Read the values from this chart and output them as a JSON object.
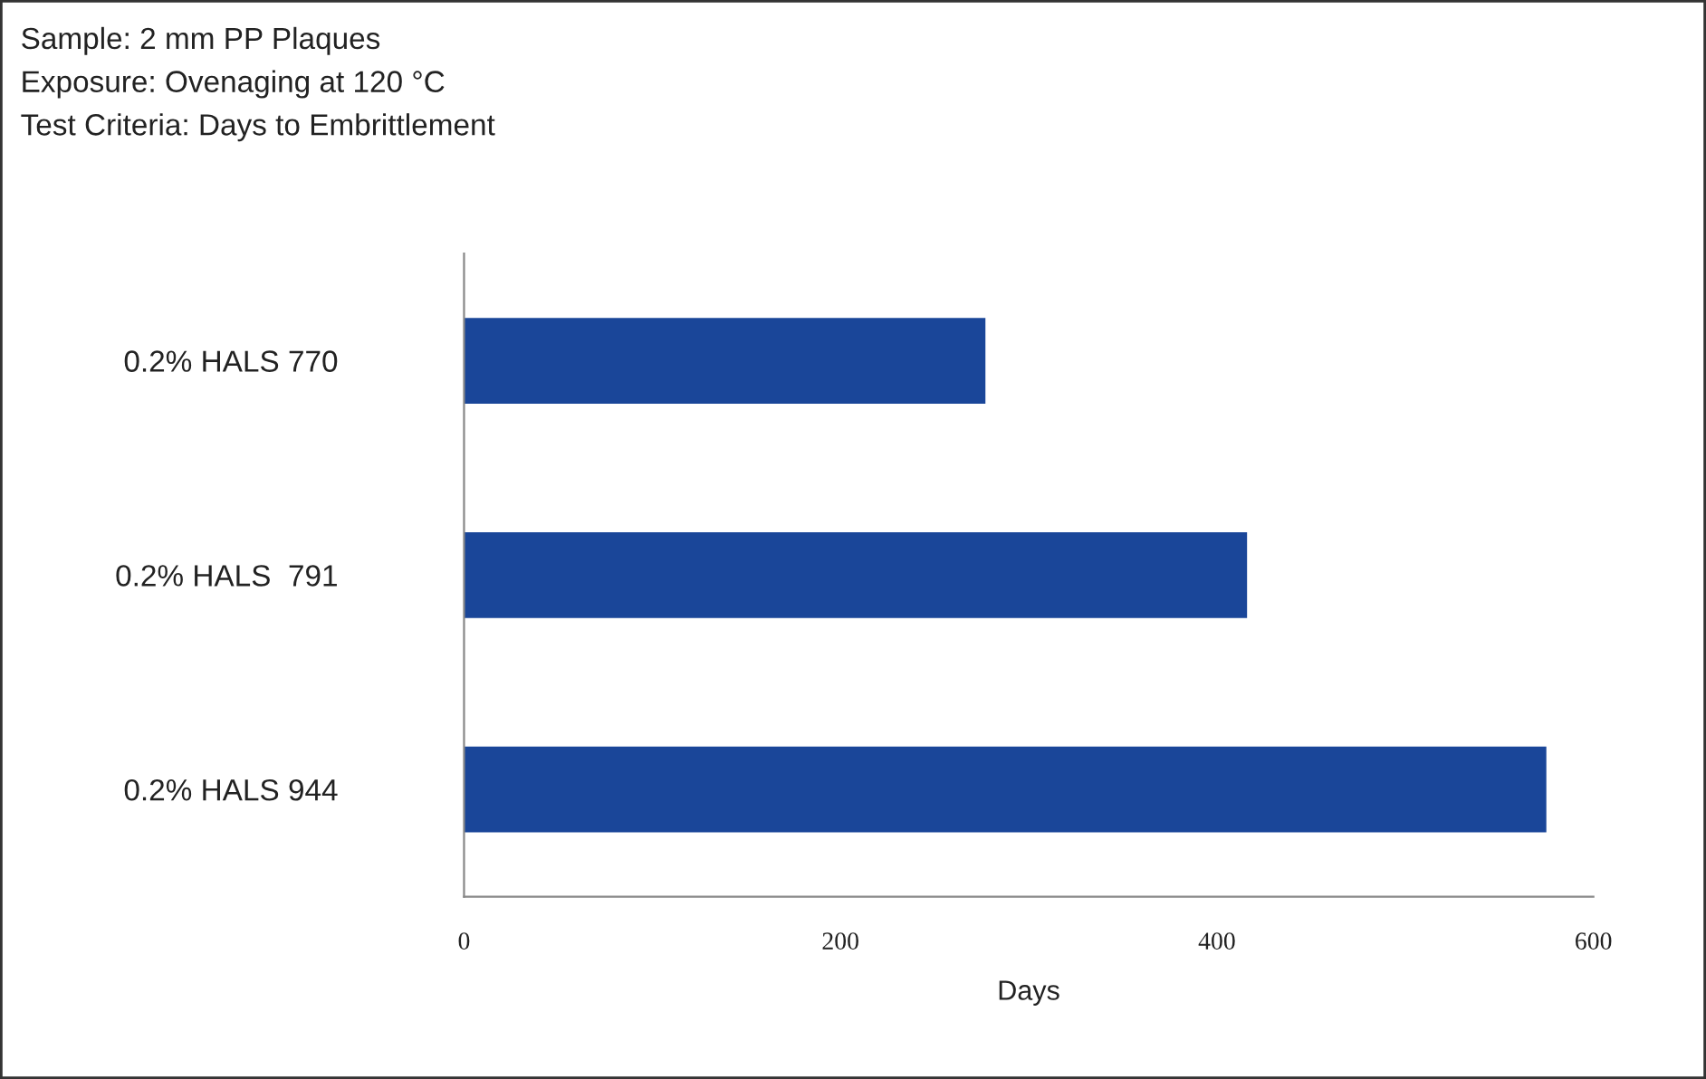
{
  "chart_data": {
    "type": "bar",
    "orientation": "horizontal",
    "annotations": [
      "Sample: 2 mm PP Plaques",
      "Exposure: Ovenaging at 120 °C",
      "Test Criteria: Days to Embrittlement"
    ],
    "categories": [
      "0.2% HALS 770",
      "0.2% HALS  791",
      "0.2% HALS 944"
    ],
    "values": [
      277,
      416,
      575
    ],
    "color": "#1a4699",
    "xlabel": "Days",
    "xlim": [
      0,
      600
    ],
    "xticks": [
      0,
      200,
      400,
      600
    ],
    "grid": false,
    "legend": false
  }
}
